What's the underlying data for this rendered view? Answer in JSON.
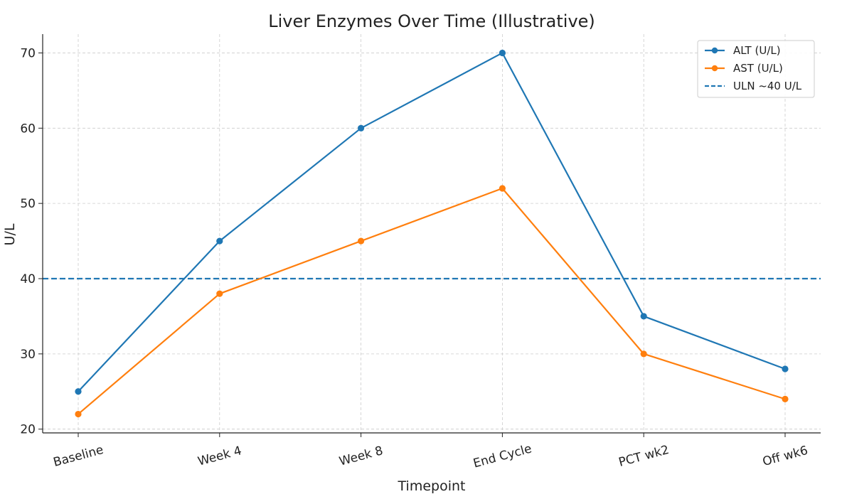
{
  "chart_data": {
    "type": "line",
    "title": "Liver Enzymes Over Time (Illustrative)",
    "xlabel": "Timepoint",
    "ylabel": "U/L",
    "categories": [
      "Baseline",
      "Week 4",
      "Week 8",
      "End Cycle",
      "PCT wk2",
      "Off wk6"
    ],
    "ylim": [
      19.5,
      72.5
    ],
    "yticks": [
      20,
      30,
      40,
      50,
      60,
      70
    ],
    "ytick_labels": [
      "20",
      "30",
      "40",
      "50",
      "60",
      "70"
    ],
    "grid": true,
    "legend_position": "top-right",
    "series": [
      {
        "name": "ALT (U/L)",
        "color": "#1f77b4",
        "values": [
          25,
          45,
          60,
          70,
          35,
          28
        ]
      },
      {
        "name": "AST (U/L)",
        "color": "#ff7f0e",
        "values": [
          22,
          38,
          45,
          52,
          30,
          24
        ]
      }
    ],
    "reference_line": {
      "name": "ULN ~40 U/L",
      "value": 40,
      "color": "#1f77b4",
      "style": "dashed"
    }
  }
}
